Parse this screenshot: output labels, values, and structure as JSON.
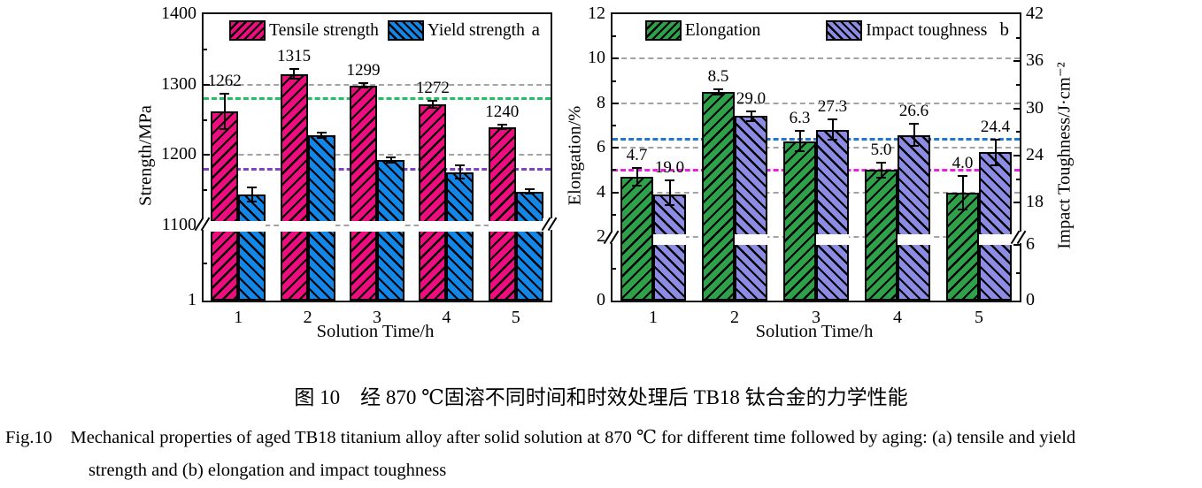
{
  "caption": {
    "zh": "图 10　经 870 ℃固溶不同时间和时效处理后 TB18 钛合金的力学性能",
    "en_line1": "Fig.10    Mechanical properties of aged TB18 titanium alloy after solid solution at 870 ℃ for different time followed by aging: (a) tensile and yield",
    "en_line2": "strength and (b) elongation and impact toughness"
  },
  "chart_data": [
    {
      "id": "a",
      "type": "bar",
      "panel_label": "a",
      "xlabel": "Solution Time/h",
      "ylabel": "Strength/MPa",
      "categories": [
        "1",
        "2",
        "3",
        "4",
        "5"
      ],
      "grid": "dashed-horizontal",
      "legend_position": "top-center",
      "axis_left": {
        "points": [
          [
            1400,
            0
          ],
          [
            1100,
            0.738
          ],
          [
            0,
            1
          ]
        ],
        "ticks": [
          {
            "v": 1400,
            "label": "1400"
          },
          {
            "v": 1300,
            "label": "1300"
          },
          {
            "v": 1200,
            "label": "1200"
          },
          {
            "v": 1100,
            "label": "1100"
          },
          {
            "v": 0,
            "label": "1"
          }
        ],
        "minor": [
          1350,
          1250,
          1150,
          550
        ],
        "broken_below": 1100
      },
      "gridlines": [
        1300,
        1200,
        1100
      ],
      "ref_lines": [
        {
          "v": 1280,
          "color": "#1fc060"
        },
        {
          "v": 1180,
          "color": "#8040c8"
        }
      ],
      "break_band": [
        0.715,
        0.752
      ],
      "series": [
        {
          "name": "Tensile strength",
          "color": "#ee0d7e",
          "hatch": "fwd",
          "axis": "left",
          "broken": true,
          "values": [
            1262,
            1315,
            1299,
            1272,
            1240
          ],
          "errors": [
            25,
            7,
            3,
            5,
            3
          ],
          "labels": [
            "1262",
            "1315",
            "1299",
            "1272",
            "1240"
          ]
        },
        {
          "name": "Yield strength",
          "color": "#1287e8",
          "hatch": "bwd",
          "axis": "left",
          "broken": true,
          "values": [
            1144,
            1228,
            1193,
            1176,
            1148
          ],
          "errors": [
            10,
            4,
            4,
            9,
            3
          ],
          "labels": [
            "",
            "",
            "",
            "",
            ""
          ]
        }
      ]
    },
    {
      "id": "b",
      "type": "bar",
      "panel_label": "b",
      "xlabel": "Solution Time/h",
      "ylabel": "Elongation/%",
      "ylabel_right": "Impact Toughness/J·cm⁻²",
      "categories": [
        "1",
        "2",
        "3",
        "4",
        "5"
      ],
      "grid": "dashed-horizontal",
      "legend_position": "top-center",
      "axis_left": {
        "points": [
          [
            12,
            0
          ],
          [
            2,
            0.778
          ],
          [
            0,
            1
          ]
        ],
        "ticks": [
          {
            "v": 12,
            "label": "12"
          },
          {
            "v": 10,
            "label": "10"
          },
          {
            "v": 8,
            "label": "8"
          },
          {
            "v": 6,
            "label": "6"
          },
          {
            "v": 4,
            "label": "4"
          },
          {
            "v": 2,
            "label": "2"
          },
          {
            "v": 0,
            "label": "0"
          }
        ],
        "minor": [
          11,
          9,
          7,
          5,
          3,
          1
        ],
        "broken_near": 2.4
      },
      "axis_right": {
        "points": [
          [
            42,
            0
          ],
          [
            18,
            0.658
          ],
          [
            6,
            0.806
          ],
          [
            0,
            1
          ]
        ],
        "ticks": [
          {
            "v": 42,
            "label": "42"
          },
          {
            "v": 36,
            "label": "36"
          },
          {
            "v": 30,
            "label": "30"
          },
          {
            "v": 24,
            "label": "24"
          },
          {
            "v": 18,
            "label": "18"
          },
          {
            "v": 6,
            "label": "6"
          },
          {
            "v": 0,
            "label": "0"
          }
        ],
        "minor": [
          39,
          33,
          27,
          21,
          3
        ],
        "broken_between": [
          6,
          18
        ]
      },
      "gridlines": [
        10,
        8,
        6,
        4,
        2
      ],
      "ref_lines": [
        {
          "v": 6.4,
          "color": "#1e78d2"
        },
        {
          "v": 5.0,
          "color": "#ea1fe0"
        }
      ],
      "break_band": [
        0.762,
        0.798
      ],
      "series": [
        {
          "name": "Elongation",
          "color": "#2fa14b",
          "hatch": "fwd",
          "axis": "left",
          "broken": false,
          "values": [
            4.7,
            8.5,
            6.3,
            5.0,
            4.0
          ],
          "errors": [
            0.4,
            0.12,
            0.45,
            0.35,
            0.75
          ],
          "labels": [
            "4.7",
            "8.5",
            "6.3",
            "5.0",
            "4.0"
          ]
        },
        {
          "name": "Impact toughness",
          "color": "#8d8ce4",
          "hatch": "bwd",
          "axis": "right",
          "broken": true,
          "values": [
            19.0,
            29.0,
            27.3,
            26.6,
            24.4
          ],
          "errors": [
            1.8,
            0.6,
            1.3,
            1.4,
            1.6
          ],
          "labels": [
            "19.0",
            "29.0",
            "27.3",
            "26.6",
            "24.4"
          ]
        }
      ]
    }
  ]
}
